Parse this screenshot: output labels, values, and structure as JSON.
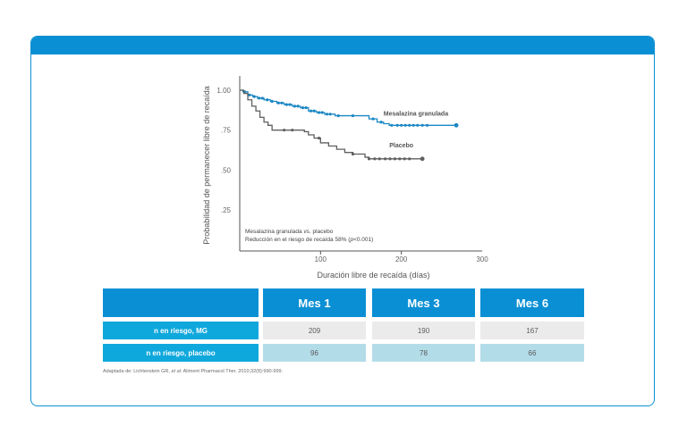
{
  "chart_data": {
    "type": "line",
    "title": "",
    "xlabel": "Duración libre de recaída (días)",
    "ylabel": "Probabilidad de permanecer libre de recaída",
    "xlim": [
      0,
      300
    ],
    "ylim": [
      0.17,
      1.05
    ],
    "x_ticks": [
      100,
      200,
      300
    ],
    "x_tick_labels": [
      "100",
      "200",
      "300"
    ],
    "y_ticks": [
      1.0,
      0.75,
      0.5,
      0.25
    ],
    "y_tick_labels": [
      "1.00",
      ".75",
      ".50",
      ".25"
    ],
    "grid": false,
    "legend": "inline labels",
    "series": [
      {
        "name": "Mesalazina granulada",
        "color": "#1a86c4",
        "steps": [
          [
            0,
            1.0
          ],
          [
            4,
            0.99
          ],
          [
            10,
            0.97
          ],
          [
            16,
            0.96
          ],
          [
            22,
            0.95
          ],
          [
            30,
            0.94
          ],
          [
            38,
            0.93
          ],
          [
            46,
            0.92
          ],
          [
            55,
            0.91
          ],
          [
            65,
            0.9
          ],
          [
            75,
            0.89
          ],
          [
            85,
            0.87
          ],
          [
            95,
            0.86
          ],
          [
            105,
            0.85
          ],
          [
            118,
            0.84
          ],
          [
            150,
            0.84
          ],
          [
            160,
            0.82
          ],
          [
            170,
            0.8
          ],
          [
            178,
            0.79
          ],
          [
            185,
            0.78
          ],
          [
            268,
            0.78
          ]
        ],
        "censor_x": [
          6,
          12,
          18,
          24,
          28,
          34,
          40,
          48,
          52,
          58,
          62,
          68,
          72,
          78,
          82,
          88,
          92,
          98,
          102,
          108,
          112,
          122,
          140,
          165,
          175,
          188,
          195,
          200,
          205,
          210,
          215,
          220,
          226,
          232,
          268
        ],
        "end_label": "Mesalazina granulada"
      },
      {
        "name": "Placebo",
        "color": "#5f5f5f",
        "steps": [
          [
            0,
            1.0
          ],
          [
            5,
            0.98
          ],
          [
            10,
            0.94
          ],
          [
            15,
            0.9
          ],
          [
            20,
            0.87
          ],
          [
            25,
            0.83
          ],
          [
            30,
            0.8
          ],
          [
            35,
            0.78
          ],
          [
            40,
            0.75
          ],
          [
            60,
            0.75
          ],
          [
            80,
            0.74
          ],
          [
            85,
            0.72
          ],
          [
            92,
            0.7
          ],
          [
            100,
            0.67
          ],
          [
            110,
            0.65
          ],
          [
            120,
            0.63
          ],
          [
            130,
            0.61
          ],
          [
            140,
            0.6
          ],
          [
            150,
            0.6
          ],
          [
            155,
            0.58
          ],
          [
            160,
            0.57
          ],
          [
            226,
            0.57
          ]
        ],
        "censor_x": [
          55,
          65,
          98,
          140,
          160,
          167,
          173,
          180,
          186,
          192,
          198,
          204,
          210,
          226
        ],
        "end_label": "Placebo"
      }
    ],
    "annotation": {
      "line1_a": "Mesalazina granulada",
      "line1_b": "vs.",
      "line1_c": "placebo",
      "line2_a": "Reducción en el riesgo de recaída 58% (",
      "line2_b": "p",
      "line2_c": "<0.001)"
    }
  },
  "risk_table": {
    "columns": [
      "Mes 1",
      "Mes 3",
      "Mes 6"
    ],
    "rows": [
      {
        "label": "n en riesgo, MG",
        "values": [
          "209",
          "190",
          "167"
        ]
      },
      {
        "label": "n en riesgo, placebo",
        "values": [
          "96",
          "78",
          "66"
        ]
      }
    ]
  },
  "footnote": {
    "a": "Adaptada de: Lichtenstein GR,",
    "b": "et al.",
    "c": "Aliment Pharmacol Ther. 2010;32(8):990-999."
  }
}
